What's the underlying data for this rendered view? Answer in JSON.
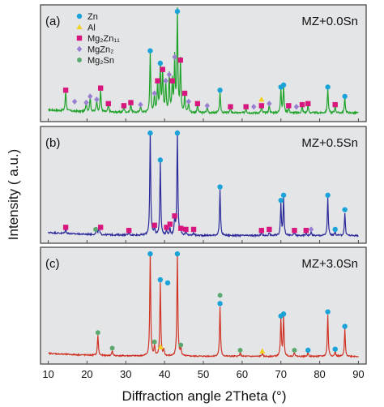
{
  "colors": {
    "zn": "#1aa3d8",
    "al": "#f0d020",
    "mg2zn11": "#d8177e",
    "mgzn2": "#9a7fd0",
    "mg2sn": "#5aa86e",
    "line_a": "#1fa32a",
    "line_b": "#2b2a9a",
    "line_c": "#d03324",
    "panel_bg": "#e4e5e7",
    "frame": "#4a4a4a"
  },
  "legend": [
    {
      "key": "zn",
      "label": "Zn",
      "shape": "circle"
    },
    {
      "key": "al",
      "label": "Al",
      "shape": "triangle"
    },
    {
      "key": "mg2zn11",
      "label": "Mg₂Zn₁₁",
      "shape": "square"
    },
    {
      "key": "mgzn2",
      "label": "MgZn₂",
      "shape": "diamond"
    },
    {
      "key": "mg2sn",
      "label": "Mg₂Sn",
      "shape": "hexagon"
    }
  ],
  "chart_data": {
    "type": "line",
    "xlabel": "Diffraction angle 2Theta (°)",
    "ylabel": "Intensity ( a.u.)",
    "xlim": [
      8,
      92
    ],
    "xticks": [
      10,
      20,
      30,
      40,
      50,
      60,
      70,
      80,
      90
    ],
    "grid": false,
    "legend_placement": "top-left",
    "panels": [
      {
        "tag": "(a)",
        "composition": "MZ+0.0Sn",
        "line_color_key": "line_a",
        "baseline": 0.06,
        "noise": 0.018,
        "ylim": [
          0,
          1.08
        ],
        "peaks": [
          {
            "x": 14.5,
            "y": 0.2
          },
          {
            "x": 19.8,
            "y": 0.1
          },
          {
            "x": 20.8,
            "y": 0.15
          },
          {
            "x": 22.5,
            "y": 0.12
          },
          {
            "x": 23.5,
            "y": 0.22
          },
          {
            "x": 25.5,
            "y": 0.08
          },
          {
            "x": 29.5,
            "y": 0.06
          },
          {
            "x": 31.3,
            "y": 0.09
          },
          {
            "x": 33.8,
            "y": 0.07
          },
          {
            "x": 36.3,
            "y": 0.58
          },
          {
            "x": 37.4,
            "y": 0.18
          },
          {
            "x": 38.2,
            "y": 0.3
          },
          {
            "x": 38.9,
            "y": 0.46
          },
          {
            "x": 39.5,
            "y": 0.4
          },
          {
            "x": 40.3,
            "y": 0.3
          },
          {
            "x": 41.2,
            "y": 0.36
          },
          {
            "x": 42.0,
            "y": 0.3
          },
          {
            "x": 42.6,
            "y": 0.52
          },
          {
            "x": 43.3,
            "y": 1.0
          },
          {
            "x": 44.1,
            "y": 0.5
          },
          {
            "x": 45.2,
            "y": 0.18
          },
          {
            "x": 46.2,
            "y": 0.1
          },
          {
            "x": 48.5,
            "y": 0.08
          },
          {
            "x": 51.0,
            "y": 0.06
          },
          {
            "x": 54.3,
            "y": 0.2
          },
          {
            "x": 57.0,
            "y": 0.05
          },
          {
            "x": 61.0,
            "y": 0.05
          },
          {
            "x": 65.0,
            "y": 0.06
          },
          {
            "x": 67.0,
            "y": 0.08
          },
          {
            "x": 70.0,
            "y": 0.24
          },
          {
            "x": 70.7,
            "y": 0.26
          },
          {
            "x": 72.0,
            "y": 0.06
          },
          {
            "x": 75.5,
            "y": 0.07
          },
          {
            "x": 77.0,
            "y": 0.08
          },
          {
            "x": 82.1,
            "y": 0.24
          },
          {
            "x": 84.0,
            "y": 0.07
          },
          {
            "x": 86.5,
            "y": 0.15
          }
        ],
        "markers": [
          {
            "x": 14.5,
            "y": 0.28,
            "p": "mg2zn11"
          },
          {
            "x": 16.8,
            "y": 0.17,
            "p": "mgzn2"
          },
          {
            "x": 19.8,
            "y": 0.16,
            "p": "mgzn2"
          },
          {
            "x": 20.8,
            "y": 0.22,
            "p": "mgzn2"
          },
          {
            "x": 22.5,
            "y": 0.19,
            "p": "mgzn2"
          },
          {
            "x": 23.5,
            "y": 0.3,
            "p": "mg2zn11"
          },
          {
            "x": 25.5,
            "y": 0.15,
            "p": "mg2zn11"
          },
          {
            "x": 29.5,
            "y": 0.13,
            "p": "mg2zn11"
          },
          {
            "x": 31.3,
            "y": 0.16,
            "p": "mg2zn11"
          },
          {
            "x": 33.8,
            "y": 0.14,
            "p": "mgzn2"
          },
          {
            "x": 36.3,
            "y": 0.66,
            "p": "zn"
          },
          {
            "x": 37.4,
            "y": 0.25,
            "p": "mgzn2"
          },
          {
            "x": 38.2,
            "y": 0.37,
            "p": "mg2zn11"
          },
          {
            "x": 38.9,
            "y": 0.54,
            "p": "zn"
          },
          {
            "x": 39.5,
            "y": 0.48,
            "p": "mg2zn11"
          },
          {
            "x": 40.3,
            "y": 0.37,
            "p": "mgzn2"
          },
          {
            "x": 41.2,
            "y": 0.43,
            "p": "mgzn2"
          },
          {
            "x": 42.0,
            "y": 0.37,
            "p": "mg2zn11"
          },
          {
            "x": 42.6,
            "y": 0.6,
            "p": "mgzn2"
          },
          {
            "x": 43.3,
            "y": 1.04,
            "p": "zn"
          },
          {
            "x": 44.1,
            "y": 0.57,
            "p": "mg2zn11"
          },
          {
            "x": 45.2,
            "y": 0.25,
            "p": "mg2zn11"
          },
          {
            "x": 46.2,
            "y": 0.17,
            "p": "mgzn2"
          },
          {
            "x": 48.5,
            "y": 0.15,
            "p": "mg2zn11"
          },
          {
            "x": 51.0,
            "y": 0.13,
            "p": "mgzn2"
          },
          {
            "x": 54.3,
            "y": 0.28,
            "p": "zn"
          },
          {
            "x": 57.0,
            "y": 0.12,
            "p": "mg2zn11"
          },
          {
            "x": 61.0,
            "y": 0.12,
            "p": "mg2zn11"
          },
          {
            "x": 63.0,
            "y": 0.12,
            "p": "mgzn2"
          },
          {
            "x": 65.0,
            "y": 0.19,
            "p": "al"
          },
          {
            "x": 65.0,
            "y": 0.13,
            "p": "mg2zn11"
          },
          {
            "x": 67.0,
            "y": 0.15,
            "p": "mgzn2"
          },
          {
            "x": 70.0,
            "y": 0.31,
            "p": "zn"
          },
          {
            "x": 70.7,
            "y": 0.33,
            "p": "zn"
          },
          {
            "x": 72.0,
            "y": 0.13,
            "p": "mg2zn11"
          },
          {
            "x": 74.0,
            "y": 0.12,
            "p": "mgzn2"
          },
          {
            "x": 75.5,
            "y": 0.14,
            "p": "mg2zn11"
          },
          {
            "x": 77.0,
            "y": 0.15,
            "p": "mg2zn11"
          },
          {
            "x": 82.1,
            "y": 0.31,
            "p": "zn"
          },
          {
            "x": 84.0,
            "y": 0.14,
            "p": "mg2zn11"
          },
          {
            "x": 86.5,
            "y": 0.22,
            "p": "zn"
          }
        ]
      },
      {
        "tag": "(b)",
        "composition": "MZ+0.5Sn",
        "line_color_key": "line_b",
        "baseline": 0.05,
        "noise": 0.015,
        "ylim": [
          0,
          1.08
        ],
        "peaks": [
          {
            "x": 14.5,
            "y": 0.05
          },
          {
            "x": 22.5,
            "y": 0.06
          },
          {
            "x": 23.1,
            "y": 0.08
          },
          {
            "x": 30.8,
            "y": 0.03
          },
          {
            "x": 36.3,
            "y": 1.0
          },
          {
            "x": 37.4,
            "y": 0.08
          },
          {
            "x": 38.9,
            "y": 0.7
          },
          {
            "x": 40.5,
            "y": 0.06
          },
          {
            "x": 41.4,
            "y": 0.07
          },
          {
            "x": 42.6,
            "y": 0.16
          },
          {
            "x": 43.3,
            "y": 1.0
          },
          {
            "x": 44.2,
            "y": 0.05
          },
          {
            "x": 45.5,
            "y": 0.04
          },
          {
            "x": 47.5,
            "y": 0.03
          },
          {
            "x": 54.3,
            "y": 0.44
          },
          {
            "x": 65.0,
            "y": 0.03
          },
          {
            "x": 67.0,
            "y": 0.03
          },
          {
            "x": 70.0,
            "y": 0.3
          },
          {
            "x": 70.7,
            "y": 0.36
          },
          {
            "x": 73.5,
            "y": 0.03
          },
          {
            "x": 76.5,
            "y": 0.03
          },
          {
            "x": 77.8,
            "y": 0.04
          },
          {
            "x": 82.1,
            "y": 0.36
          },
          {
            "x": 84.0,
            "y": 0.04
          },
          {
            "x": 86.5,
            "y": 0.22
          }
        ],
        "markers": [
          {
            "x": 14.5,
            "y": 0.13,
            "p": "mg2zn11"
          },
          {
            "x": 22.2,
            "y": 0.11,
            "p": "mg2sn"
          },
          {
            "x": 23.5,
            "y": 0.13,
            "p": "mg2zn11"
          },
          {
            "x": 30.8,
            "y": 0.1,
            "p": "mg2zn11"
          },
          {
            "x": 36.3,
            "y": 1.04,
            "p": "zn"
          },
          {
            "x": 37.4,
            "y": 0.15,
            "p": "mg2zn11"
          },
          {
            "x": 38.9,
            "y": 0.78,
            "p": "zn"
          },
          {
            "x": 40.5,
            "y": 0.13,
            "p": "mg2zn11"
          },
          {
            "x": 41.4,
            "y": 0.16,
            "p": "mg2zn11"
          },
          {
            "x": 42.6,
            "y": 0.24,
            "p": "mg2zn11"
          },
          {
            "x": 43.3,
            "y": 1.04,
            "p": "zn"
          },
          {
            "x": 44.2,
            "y": 0.12,
            "p": "mg2zn11"
          },
          {
            "x": 45.5,
            "y": 0.11,
            "p": "mg2zn11"
          },
          {
            "x": 47.5,
            "y": 0.11,
            "p": "mg2zn11"
          },
          {
            "x": 54.3,
            "y": 0.52,
            "p": "zn"
          },
          {
            "x": 65.0,
            "y": 0.1,
            "p": "mg2zn11"
          },
          {
            "x": 67.0,
            "y": 0.11,
            "p": "mg2zn11"
          },
          {
            "x": 70.0,
            "y": 0.39,
            "p": "zn"
          },
          {
            "x": 70.7,
            "y": 0.44,
            "p": "zn"
          },
          {
            "x": 73.5,
            "y": 0.1,
            "p": "mg2zn11"
          },
          {
            "x": 76.5,
            "y": 0.1,
            "p": "mg2zn11"
          },
          {
            "x": 77.8,
            "y": 0.11,
            "p": "mgzn2"
          },
          {
            "x": 82.1,
            "y": 0.44,
            "p": "zn"
          },
          {
            "x": 84.0,
            "y": 0.11,
            "p": "zn"
          },
          {
            "x": 86.5,
            "y": 0.3,
            "p": "zn"
          }
        ]
      },
      {
        "tag": "(c)",
        "composition": "MZ+3.0Sn",
        "line_color_key": "line_c",
        "baseline": 0.05,
        "noise": 0.012,
        "ylim": [
          0,
          1.08
        ],
        "peaks": [
          {
            "x": 22.8,
            "y": 0.2
          },
          {
            "x": 26.5,
            "y": 0.05
          },
          {
            "x": 36.3,
            "y": 1.0
          },
          {
            "x": 37.4,
            "y": 0.1
          },
          {
            "x": 38.9,
            "y": 0.7
          },
          {
            "x": 39.8,
            "y": 0.06
          },
          {
            "x": 43.3,
            "y": 1.0
          },
          {
            "x": 44.2,
            "y": 0.08
          },
          {
            "x": 54.3,
            "y": 0.48
          },
          {
            "x": 59.5,
            "y": 0.04
          },
          {
            "x": 65.2,
            "y": 0.03
          },
          {
            "x": 70.0,
            "y": 0.36
          },
          {
            "x": 70.7,
            "y": 0.38
          },
          {
            "x": 73.5,
            "y": 0.04
          },
          {
            "x": 77.0,
            "y": 0.04
          },
          {
            "x": 82.1,
            "y": 0.4
          },
          {
            "x": 84.0,
            "y": 0.05
          },
          {
            "x": 86.5,
            "y": 0.26
          }
        ],
        "markers": [
          {
            "x": 22.8,
            "y": 0.28,
            "p": "mg2sn"
          },
          {
            "x": 26.5,
            "y": 0.13,
            "p": "mg2sn"
          },
          {
            "x": 36.3,
            "y": 1.04,
            "p": "zn"
          },
          {
            "x": 37.4,
            "y": 0.19,
            "p": "mg2sn"
          },
          {
            "x": 38.9,
            "y": 0.79,
            "p": "zn"
          },
          {
            "x": 39.0,
            "y": 0.14,
            "p": "al"
          },
          {
            "x": 40.8,
            "y": 0.76,
            "p": "zn"
          },
          {
            "x": 43.3,
            "y": 1.04,
            "p": "zn"
          },
          {
            "x": 44.2,
            "y": 0.16,
            "p": "mg2sn"
          },
          {
            "x": 54.3,
            "y": 0.56,
            "p": "zn"
          },
          {
            "x": 54.3,
            "y": 0.64,
            "p": "mg2sn"
          },
          {
            "x": 59.5,
            "y": 0.11,
            "p": "mg2sn"
          },
          {
            "x": 65.2,
            "y": 0.1,
            "p": "al"
          },
          {
            "x": 70.0,
            "y": 0.44,
            "p": "zn"
          },
          {
            "x": 70.7,
            "y": 0.46,
            "p": "zn"
          },
          {
            "x": 73.5,
            "y": 0.11,
            "p": "mg2sn"
          },
          {
            "x": 77.0,
            "y": 0.11,
            "p": "zn"
          },
          {
            "x": 82.1,
            "y": 0.48,
            "p": "zn"
          },
          {
            "x": 84.0,
            "y": 0.12,
            "p": "zn"
          },
          {
            "x": 86.5,
            "y": 0.34,
            "p": "zn"
          }
        ]
      }
    ]
  }
}
